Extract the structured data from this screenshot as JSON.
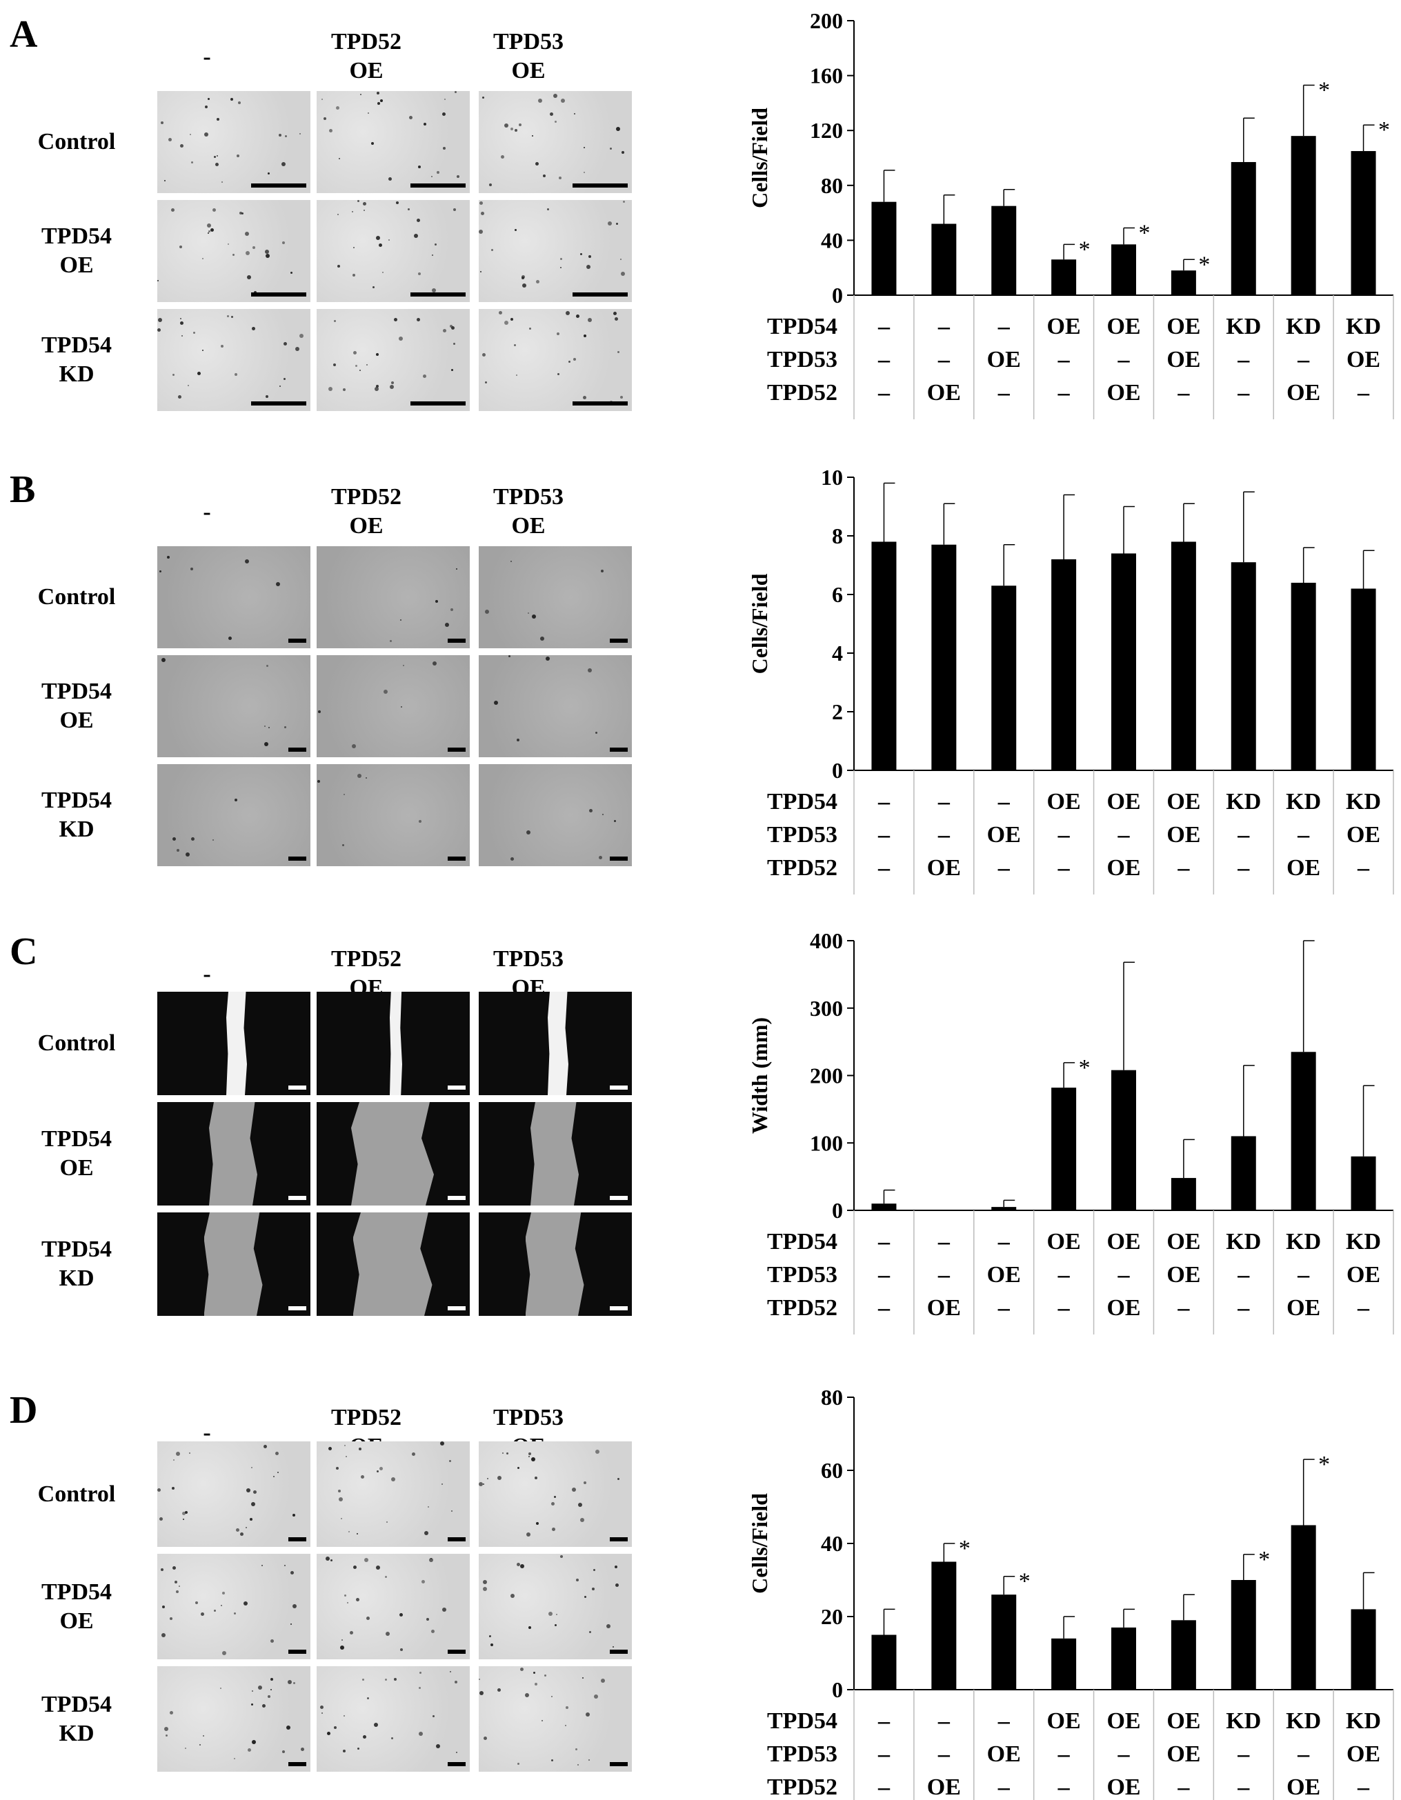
{
  "column_headers": [
    "-",
    "TPD52\nOE",
    "TPD53\nOE"
  ],
  "row_headers": [
    "Control",
    "TPD54\nOE",
    "TPD54\nKD"
  ],
  "condition_rows": [
    {
      "label": "TPD54",
      "values": [
        "–",
        "–",
        "–",
        "OE",
        "OE",
        "OE",
        "KD",
        "KD",
        "KD"
      ]
    },
    {
      "label": "TPD53",
      "values": [
        "–",
        "–",
        "OE",
        "–",
        "–",
        "OE",
        "–",
        "–",
        "OE"
      ]
    },
    {
      "label": "TPD52",
      "values": [
        "–",
        "OE",
        "–",
        "–",
        "OE",
        "–",
        "–",
        "OE",
        "–"
      ]
    }
  ],
  "colors": {
    "bar": "#000000",
    "axis": "#000000",
    "bright_field": "#d6d6d6",
    "gray_field": "#a8a8a8",
    "dark_field": "#0c0c0c"
  },
  "panels": [
    {
      "letter": "A",
      "style": "bright"
    },
    {
      "letter": "B",
      "style": "gray"
    },
    {
      "letter": "C",
      "style": "dark"
    },
    {
      "letter": "D",
      "style": "bright"
    }
  ],
  "chart_data": [
    {
      "type": "bar",
      "panel": "A",
      "title": "",
      "xlabel": "",
      "ylabel": "Cells/Field",
      "ylim": [
        0,
        200
      ],
      "yticks": [
        0,
        40,
        80,
        120,
        160,
        200
      ],
      "values": [
        68,
        52,
        65,
        26,
        37,
        18,
        97,
        116,
        105
      ],
      "errors": [
        23,
        21,
        12,
        11,
        12,
        8,
        32,
        37,
        19
      ],
      "significance": [
        "",
        "",
        "",
        "*",
        "*",
        "*",
        "",
        "*",
        "*"
      ]
    },
    {
      "type": "bar",
      "panel": "B",
      "title": "",
      "xlabel": "",
      "ylabel": "Cells/Field",
      "ylim": [
        0,
        10
      ],
      "yticks": [
        0,
        2,
        4,
        6,
        8,
        10
      ],
      "values": [
        7.8,
        7.7,
        6.3,
        7.2,
        7.4,
        7.8,
        7.1,
        6.4,
        6.2
      ],
      "errors": [
        2.0,
        1.4,
        1.4,
        2.2,
        1.6,
        1.3,
        2.4,
        1.2,
        1.3
      ],
      "significance": [
        "",
        "",
        "",
        "",
        "",
        "",
        "",
        "",
        ""
      ]
    },
    {
      "type": "bar",
      "panel": "C",
      "title": "",
      "xlabel": "",
      "ylabel": "Width (mm)",
      "ylim": [
        0,
        400
      ],
      "yticks": [
        0,
        100,
        200,
        300,
        400
      ],
      "values": [
        10,
        0,
        5,
        182,
        208,
        48,
        110,
        235,
        80
      ],
      "errors": [
        20,
        0,
        10,
        37,
        160,
        57,
        105,
        165,
        105
      ],
      "significance": [
        "",
        "",
        "",
        "*",
        "",
        "",
        "",
        "",
        ""
      ]
    },
    {
      "type": "bar",
      "panel": "D",
      "title": "",
      "xlabel": "",
      "ylabel": "Cells/Field",
      "ylim": [
        0,
        80
      ],
      "yticks": [
        0,
        20,
        40,
        60,
        80
      ],
      "values": [
        15,
        35,
        26,
        14,
        17,
        19,
        30,
        45,
        22
      ],
      "errors": [
        7,
        5,
        5,
        6,
        5,
        7,
        7,
        18,
        10
      ],
      "significance": [
        "",
        "*",
        "*",
        "",
        "",
        "",
        "*",
        "*",
        ""
      ]
    }
  ]
}
